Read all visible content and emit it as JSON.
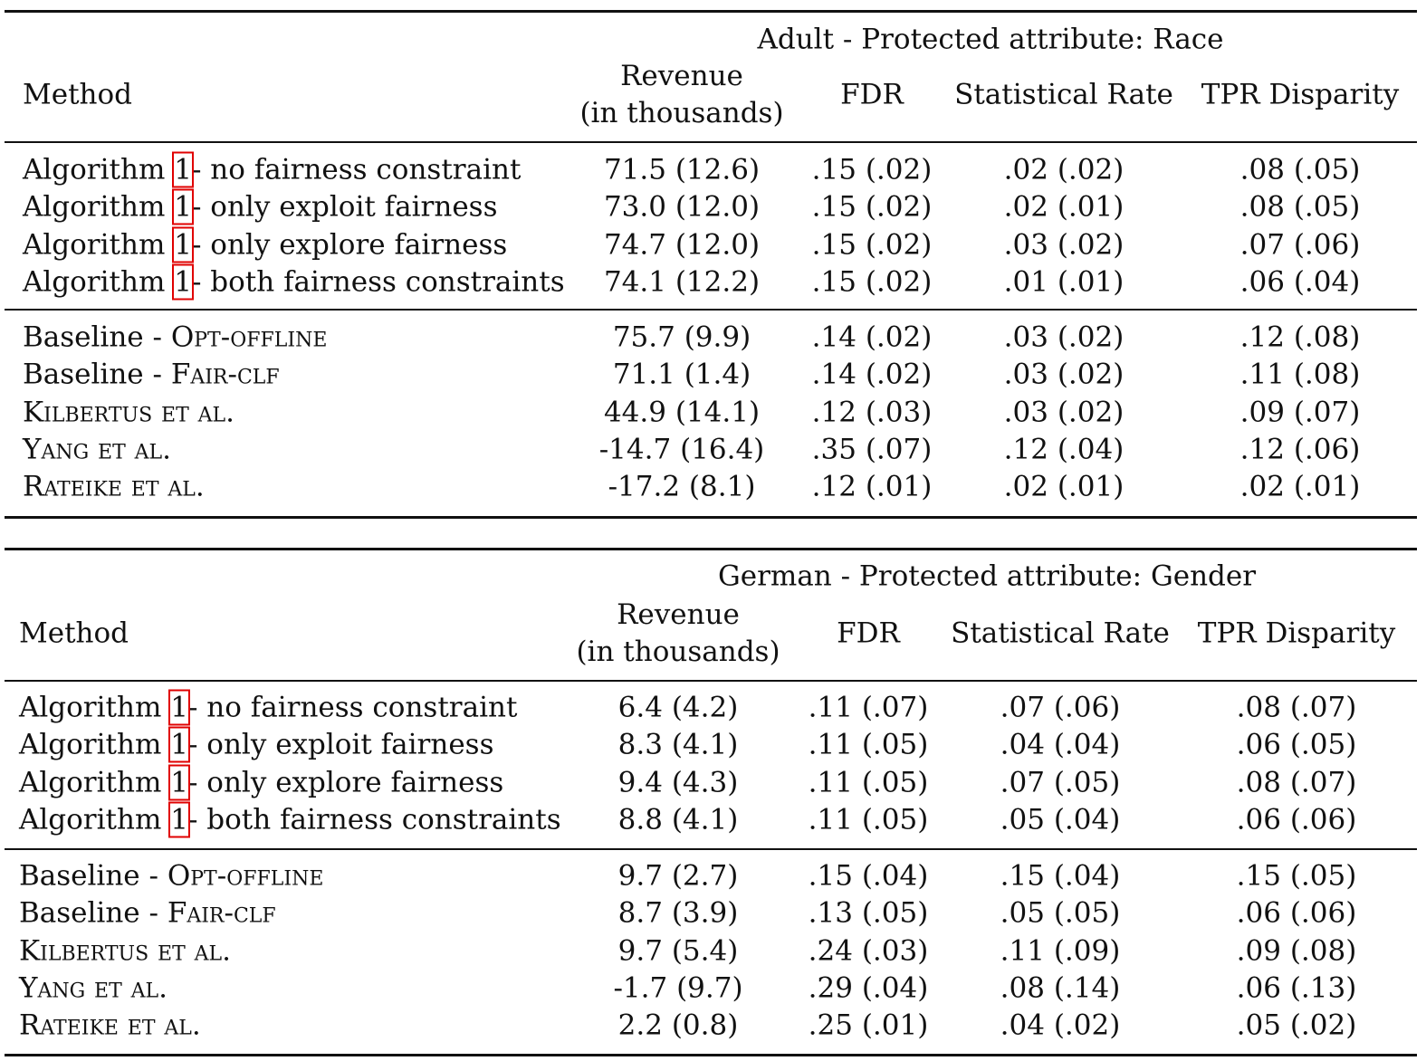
{
  "tables": [
    {
      "caption": "Adult - Protected attribute: Race",
      "headers": [
        [
          "Method"
        ],
        [
          "Revenue",
          "(in thousands)"
        ],
        [
          "FDR"
        ],
        [
          "Statistical Rate"
        ],
        [
          "TPR Disparity"
        ]
      ],
      "groups": [
        [
          {
            "method": [
              {
                "t": "Algorithm "
              },
              {
                "t": "1",
                "ref": true
              },
              {
                "t": "- no fairness constraint"
              }
            ],
            "cells": [
              "71.5 (12.6)",
              ".15 (.02)",
              ".02 (.02)",
              ".08 (.05)"
            ]
          },
          {
            "method": [
              {
                "t": "Algorithm "
              },
              {
                "t": "1",
                "ref": true
              },
              {
                "t": "- only exploit fairness"
              }
            ],
            "cells": [
              "73.0 (12.0)",
              ".15 (.02)",
              ".02 (.01)",
              ".08 (.05)"
            ]
          },
          {
            "method": [
              {
                "t": "Algorithm "
              },
              {
                "t": "1",
                "ref": true
              },
              {
                "t": "- only explore fairness"
              }
            ],
            "cells": [
              "74.7 (12.0)",
              ".15 (.02)",
              ".03 (.02)",
              ".07 (.06)"
            ]
          },
          {
            "method": [
              {
                "t": "Algorithm "
              },
              {
                "t": "1",
                "ref": true
              },
              {
                "t": "- both fairness constraints"
              }
            ],
            "cells": [
              "74.1 (12.2)",
              ".15 (.02)",
              ".01 (.01)",
              ".06 (.04)"
            ]
          }
        ],
        [
          {
            "method": [
              {
                "t": "Baseline - "
              },
              {
                "t": "Opt-offline",
                "sc": true
              }
            ],
            "cells": [
              "75.7 (9.9)",
              ".14 (.02)",
              ".03 (.02)",
              ".12 (.08)"
            ]
          },
          {
            "method": [
              {
                "t": "Baseline - "
              },
              {
                "t": "Fair-clf",
                "sc": true
              }
            ],
            "cells": [
              "71.1 (1.4)",
              ".14 (.02)",
              ".03 (.02)",
              ".11 (.08)"
            ]
          },
          {
            "method": [
              {
                "t": "Kilbertus et al.",
                "sc": true
              }
            ],
            "cells": [
              "44.9 (14.1)",
              ".12 (.03)",
              ".03 (.02)",
              ".09 (.07)"
            ]
          },
          {
            "method": [
              {
                "t": "Yang et al.",
                "sc": true
              }
            ],
            "cells": [
              "-14.7 (16.4)",
              ".35 (.07)",
              ".12 (.04)",
              ".12 (.06)"
            ]
          },
          {
            "method": [
              {
                "t": "Rateike et al.",
                "sc": true
              }
            ],
            "cells": [
              "-17.2 (8.1)",
              ".12 (.01)",
              ".02 (.01)",
              ".02 (.01)"
            ]
          }
        ]
      ]
    },
    {
      "caption": "German - Protected attribute: Gender",
      "headers": [
        [
          "Method"
        ],
        [
          "Revenue",
          "(in thousands)"
        ],
        [
          "FDR"
        ],
        [
          "Statistical Rate"
        ],
        [
          "TPR Disparity"
        ]
      ],
      "groups": [
        [
          {
            "method": [
              {
                "t": "Algorithm "
              },
              {
                "t": "1",
                "ref": true
              },
              {
                "t": "- no fairness constraint"
              }
            ],
            "cells": [
              "6.4 (4.2)",
              ".11 (.07)",
              ".07 (.06)",
              ".08 (.07)"
            ]
          },
          {
            "method": [
              {
                "t": "Algorithm "
              },
              {
                "t": "1",
                "ref": true
              },
              {
                "t": "- only exploit fairness"
              }
            ],
            "cells": [
              "8.3 (4.1)",
              ".11 (.05)",
              ".04 (.04)",
              ".06 (.05)"
            ]
          },
          {
            "method": [
              {
                "t": "Algorithm "
              },
              {
                "t": "1",
                "ref": true
              },
              {
                "t": "- only explore fairness"
              }
            ],
            "cells": [
              "9.4 (4.3)",
              ".11 (.05)",
              ".07 (.05)",
              ".08 (.07)"
            ]
          },
          {
            "method": [
              {
                "t": "Algorithm "
              },
              {
                "t": "1",
                "ref": true
              },
              {
                "t": "- both fairness constraints"
              }
            ],
            "cells": [
              "8.8 (4.1)",
              ".11 (.05)",
              ".05 (.04)",
              ".06 (.06)"
            ]
          }
        ],
        [
          {
            "method": [
              {
                "t": "Baseline - "
              },
              {
                "t": "Opt-offline",
                "sc": true
              }
            ],
            "cells": [
              "9.7 (2.7)",
              ".15 (.04)",
              ".15 (.04)",
              ".15 (.05)"
            ]
          },
          {
            "method": [
              {
                "t": "Baseline - "
              },
              {
                "t": "Fair-clf",
                "sc": true
              }
            ],
            "cells": [
              "8.7 (3.9)",
              ".13 (.05)",
              ".05 (.05)",
              ".06 (.06)"
            ]
          },
          {
            "method": [
              {
                "t": "Kilbertus et al.",
                "sc": true
              }
            ],
            "cells": [
              "9.7 (5.4)",
              ".24 (.03)",
              ".11 (.09)",
              ".09 (.08)"
            ]
          },
          {
            "method": [
              {
                "t": "Yang et al.",
                "sc": true
              }
            ],
            "cells": [
              "-1.7 (9.7)",
              ".29 (.04)",
              ".08 (.14)",
              ".06 (.13)"
            ]
          },
          {
            "method": [
              {
                "t": "Rateike et al.",
                "sc": true
              }
            ],
            "cells": [
              "2.2 (0.8)",
              ".25 (.01)",
              ".04 (.02)",
              ".05 (.02)"
            ]
          }
        ]
      ]
    }
  ]
}
